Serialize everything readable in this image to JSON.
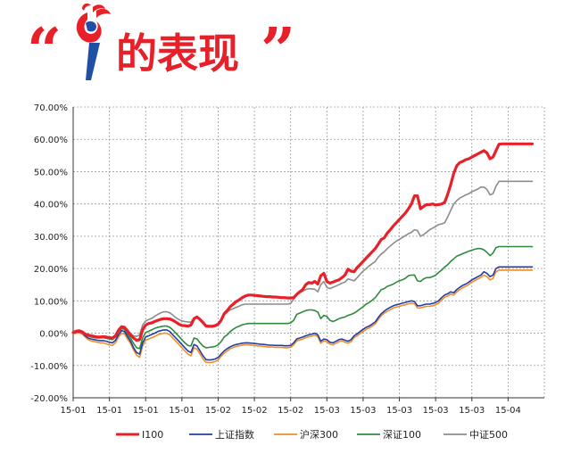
{
  "header": {
    "open_quote": "“",
    "title": "的表现",
    "close_quote": "”",
    "logo_icon": "torch-logo-icon"
  },
  "chart_data": {
    "type": "line",
    "title": "",
    "xlabel": "",
    "ylabel": "",
    "ylim": [
      -0.2,
      0.7
    ],
    "grid": true,
    "legend_position": "bottom",
    "yticks": [
      "70.00%",
      "60.00%",
      "50.00%",
      "40.00%",
      "30.00%",
      "20.00%",
      "10.00%",
      "0.00%",
      "-10.00%",
      "-20.00%"
    ],
    "xticks": [
      "15-01",
      "15-01",
      "15-01",
      "15-01",
      "15-02",
      "15-02",
      "15-02",
      "15-03",
      "15-03",
      "15-03",
      "15-03",
      "15-03",
      "15-04"
    ],
    "x": [
      0,
      1,
      2,
      3,
      4,
      5,
      6,
      7,
      8,
      9,
      10,
      11,
      12,
      13,
      14,
      15,
      16,
      17,
      18,
      19,
      20,
      21,
      22,
      23,
      24,
      25,
      26,
      27,
      28,
      29,
      30,
      31,
      32,
      33,
      34,
      35,
      36,
      37,
      38,
      39,
      40,
      41,
      42,
      43,
      44,
      45,
      46,
      47,
      48,
      49,
      50,
      51,
      52,
      53,
      54,
      55,
      56,
      57,
      58,
      59,
      60,
      61,
      62,
      63,
      64,
      65,
      66,
      67,
      68,
      69,
      70,
      71,
      72,
      73,
      74,
      75,
      76,
      77,
      78,
      79,
      80,
      81,
      82,
      83,
      84,
      85,
      86,
      87,
      88,
      89,
      90,
      91,
      92,
      93,
      94,
      95,
      96,
      97,
      98,
      99,
      100,
      101,
      102,
      103,
      104,
      105,
      106,
      107,
      108,
      109,
      110,
      111,
      112,
      113,
      114,
      115,
      116,
      117,
      118,
      119,
      120,
      121,
      122,
      123,
      124,
      125,
      126,
      127,
      128,
      129,
      130,
      131,
      132,
      133,
      134,
      135,
      136,
      137,
      138,
      139,
      140,
      141,
      142,
      143,
      144,
      145,
      146,
      147,
      148,
      149,
      150,
      151,
      152,
      153,
      154,
      155,
      156
    ],
    "series": [
      {
        "name": "I100",
        "color": "#e8202a",
        "width": 3.2,
        "values": [
          0.002,
          0.006,
          0.007,
          0.004,
          -0.003,
          -0.006,
          -0.008,
          -0.01,
          -0.012,
          -0.012,
          -0.011,
          -0.012,
          -0.014,
          -0.015,
          -0.008,
          0.009,
          0.02,
          0.018,
          0.007,
          -0.005,
          -0.015,
          -0.022,
          -0.02,
          0.01,
          0.025,
          0.03,
          0.032,
          0.036,
          0.04,
          0.043,
          0.045,
          0.045,
          0.044,
          0.04,
          0.034,
          0.028,
          0.024,
          0.023,
          0.022,
          0.025,
          0.045,
          0.05,
          0.042,
          0.033,
          0.022,
          0.021,
          0.021,
          0.023,
          0.028,
          0.04,
          0.06,
          0.07,
          0.082,
          0.09,
          0.098,
          0.103,
          0.11,
          0.115,
          0.118,
          0.118,
          0.117,
          0.116,
          0.115,
          0.114,
          0.113,
          0.113,
          0.112,
          0.112,
          0.111,
          0.11,
          0.11,
          0.109,
          0.109,
          0.11,
          0.12,
          0.128,
          0.135,
          0.15,
          0.157,
          0.155,
          0.16,
          0.152,
          0.178,
          0.185,
          0.16,
          0.155,
          0.158,
          0.162,
          0.165,
          0.172,
          0.18,
          0.198,
          0.192,
          0.19,
          0.203,
          0.212,
          0.222,
          0.232,
          0.242,
          0.252,
          0.262,
          0.275,
          0.29,
          0.295,
          0.31,
          0.32,
          0.332,
          0.342,
          0.352,
          0.362,
          0.372,
          0.385,
          0.4,
          0.425,
          0.425,
          0.385,
          0.392,
          0.398,
          0.398,
          0.4,
          0.397,
          0.398,
          0.4,
          0.405,
          0.43,
          0.46,
          0.495,
          0.518,
          0.528,
          0.532,
          0.537,
          0.54,
          0.545,
          0.55,
          0.555,
          0.56,
          0.565,
          0.558,
          0.54,
          0.545,
          0.565,
          0.585,
          0.586,
          0.586,
          0.586,
          0.586,
          0.586,
          0.586,
          0.586,
          0.586,
          0.586,
          0.586,
          0.586,
          0.586,
          0.586,
          0.586,
          0.586
        ]
      },
      {
        "name": "上证指数",
        "color": "#1f3fa6",
        "width": 1.6,
        "values": [
          0.0,
          0.003,
          0.004,
          0.001,
          -0.008,
          -0.015,
          -0.018,
          -0.02,
          -0.022,
          -0.023,
          -0.023,
          -0.025,
          -0.028,
          -0.03,
          -0.022,
          -0.005,
          0.008,
          0.005,
          -0.01,
          -0.025,
          -0.045,
          -0.06,
          -0.065,
          -0.03,
          -0.012,
          -0.008,
          -0.004,
          0.0,
          0.005,
          0.008,
          0.01,
          0.01,
          0.005,
          -0.005,
          -0.015,
          -0.025,
          -0.035,
          -0.045,
          -0.055,
          -0.06,
          -0.035,
          -0.04,
          -0.055,
          -0.07,
          -0.082,
          -0.083,
          -0.082,
          -0.08,
          -0.075,
          -0.065,
          -0.055,
          -0.048,
          -0.042,
          -0.038,
          -0.035,
          -0.033,
          -0.031,
          -0.03,
          -0.03,
          -0.031,
          -0.032,
          -0.033,
          -0.034,
          -0.035,
          -0.036,
          -0.037,
          -0.037,
          -0.038,
          -0.038,
          -0.038,
          -0.039,
          -0.039,
          -0.038,
          -0.03,
          -0.018,
          -0.015,
          -0.012,
          -0.008,
          -0.005,
          -0.003,
          0.0,
          -0.005,
          -0.025,
          -0.018,
          -0.02,
          -0.028,
          -0.03,
          -0.025,
          -0.02,
          -0.018,
          -0.022,
          -0.025,
          -0.02,
          -0.008,
          -0.002,
          0.005,
          0.012,
          0.018,
          0.022,
          0.028,
          0.035,
          0.048,
          0.06,
          0.068,
          0.075,
          0.08,
          0.085,
          0.088,
          0.09,
          0.093,
          0.095,
          0.098,
          0.1,
          0.098,
          0.085,
          0.085,
          0.088,
          0.09,
          0.09,
          0.092,
          0.095,
          0.1,
          0.11,
          0.118,
          0.122,
          0.128,
          0.125,
          0.135,
          0.142,
          0.148,
          0.152,
          0.158,
          0.165,
          0.17,
          0.175,
          0.18,
          0.19,
          0.185,
          0.175,
          0.18,
          0.2,
          0.205,
          0.205,
          0.205,
          0.205,
          0.205,
          0.205,
          0.205,
          0.205,
          0.205,
          0.205,
          0.205,
          0.205,
          0.205,
          0.205,
          0.205,
          0.205
        ]
      },
      {
        "name": "沪深300",
        "color": "#f28c28",
        "width": 1.6,
        "values": [
          -0.002,
          0.0,
          0.001,
          -0.003,
          -0.012,
          -0.02,
          -0.024,
          -0.026,
          -0.028,
          -0.03,
          -0.03,
          -0.033,
          -0.036,
          -0.038,
          -0.03,
          -0.012,
          0.0,
          -0.002,
          -0.018,
          -0.032,
          -0.052,
          -0.068,
          -0.075,
          -0.04,
          -0.022,
          -0.018,
          -0.014,
          -0.01,
          -0.005,
          -0.002,
          0.0,
          0.0,
          -0.005,
          -0.015,
          -0.025,
          -0.035,
          -0.045,
          -0.055,
          -0.065,
          -0.07,
          -0.045,
          -0.05,
          -0.065,
          -0.08,
          -0.09,
          -0.091,
          -0.09,
          -0.088,
          -0.082,
          -0.072,
          -0.062,
          -0.055,
          -0.048,
          -0.044,
          -0.041,
          -0.039,
          -0.037,
          -0.036,
          -0.036,
          -0.037,
          -0.038,
          -0.039,
          -0.04,
          -0.041,
          -0.042,
          -0.043,
          -0.043,
          -0.044,
          -0.044,
          -0.044,
          -0.045,
          -0.045,
          -0.044,
          -0.036,
          -0.024,
          -0.021,
          -0.018,
          -0.014,
          -0.011,
          -0.009,
          -0.006,
          -0.011,
          -0.031,
          -0.024,
          -0.026,
          -0.034,
          -0.036,
          -0.031,
          -0.026,
          -0.024,
          -0.028,
          -0.031,
          -0.026,
          -0.014,
          -0.008,
          -0.001,
          0.006,
          0.012,
          0.016,
          0.022,
          0.029,
          0.042,
          0.054,
          0.062,
          0.068,
          0.073,
          0.078,
          0.081,
          0.083,
          0.086,
          0.088,
          0.091,
          0.093,
          0.091,
          0.078,
          0.078,
          0.081,
          0.083,
          0.083,
          0.085,
          0.088,
          0.093,
          0.103,
          0.111,
          0.115,
          0.121,
          0.118,
          0.128,
          0.135,
          0.141,
          0.145,
          0.151,
          0.158,
          0.163,
          0.168,
          0.173,
          0.18,
          0.175,
          0.165,
          0.17,
          0.19,
          0.195,
          0.195,
          0.195,
          0.195,
          0.195,
          0.195,
          0.195,
          0.195,
          0.195,
          0.195,
          0.195,
          0.195,
          0.195,
          0.195,
          0.195,
          0.195
        ]
      },
      {
        "name": "深证100",
        "color": "#2e8b3e",
        "width": 1.6,
        "values": [
          0.003,
          0.006,
          0.008,
          0.004,
          -0.004,
          -0.009,
          -0.012,
          -0.014,
          -0.015,
          -0.015,
          -0.014,
          -0.016,
          -0.018,
          -0.02,
          -0.012,
          0.004,
          0.014,
          0.012,
          -0.002,
          -0.015,
          -0.032,
          -0.045,
          -0.048,
          -0.015,
          0.002,
          0.006,
          0.01,
          0.015,
          0.018,
          0.02,
          0.022,
          0.022,
          0.018,
          0.01,
          0.0,
          -0.01,
          -0.02,
          -0.03,
          -0.038,
          -0.04,
          -0.015,
          -0.018,
          -0.03,
          -0.04,
          -0.045,
          -0.044,
          -0.043,
          -0.041,
          -0.036,
          -0.026,
          -0.012,
          -0.005,
          0.005,
          0.012,
          0.018,
          0.022,
          0.026,
          0.028,
          0.03,
          0.03,
          0.03,
          0.03,
          0.03,
          0.03,
          0.03,
          0.03,
          0.03,
          0.03,
          0.03,
          0.03,
          0.03,
          0.03,
          0.032,
          0.04,
          0.058,
          0.062,
          0.066,
          0.07,
          0.072,
          0.072,
          0.07,
          0.065,
          0.045,
          0.055,
          0.052,
          0.04,
          0.036,
          0.04,
          0.045,
          0.048,
          0.05,
          0.055,
          0.058,
          0.062,
          0.068,
          0.075,
          0.082,
          0.09,
          0.095,
          0.102,
          0.11,
          0.122,
          0.135,
          0.138,
          0.145,
          0.148,
          0.152,
          0.158,
          0.162,
          0.165,
          0.17,
          0.178,
          0.18,
          0.18,
          0.162,
          0.16,
          0.168,
          0.172,
          0.172,
          0.175,
          0.18,
          0.188,
          0.195,
          0.205,
          0.212,
          0.222,
          0.23,
          0.238,
          0.242,
          0.246,
          0.25,
          0.254,
          0.257,
          0.26,
          0.262,
          0.262,
          0.258,
          0.25,
          0.24,
          0.248,
          0.265,
          0.268,
          0.268,
          0.268,
          0.268,
          0.268,
          0.268,
          0.268,
          0.268,
          0.268,
          0.268,
          0.268,
          0.268,
          0.268,
          0.268,
          0.268,
          0.268
        ]
      },
      {
        "name": "中证500",
        "color": "#8c8c8c",
        "width": 1.6,
        "values": [
          0.004,
          0.008,
          0.01,
          0.006,
          -0.002,
          -0.006,
          -0.008,
          -0.01,
          -0.011,
          -0.011,
          -0.01,
          -0.011,
          -0.012,
          -0.013,
          -0.006,
          0.01,
          0.022,
          0.02,
          0.008,
          -0.002,
          -0.008,
          -0.01,
          -0.005,
          0.025,
          0.038,
          0.042,
          0.046,
          0.052,
          0.058,
          0.063,
          0.066,
          0.066,
          0.063,
          0.056,
          0.048,
          0.042,
          0.038,
          0.036,
          0.035,
          0.034,
          0.048,
          0.052,
          0.045,
          0.036,
          0.025,
          0.023,
          0.023,
          0.026,
          0.03,
          0.04,
          0.056,
          0.065,
          0.072,
          0.076,
          0.08,
          0.084,
          0.088,
          0.09,
          0.09,
          0.09,
          0.09,
          0.09,
          0.09,
          0.09,
          0.09,
          0.09,
          0.09,
          0.09,
          0.09,
          0.09,
          0.09,
          0.09,
          0.092,
          0.105,
          0.118,
          0.125,
          0.13,
          0.135,
          0.138,
          0.137,
          0.136,
          0.128,
          0.15,
          0.16,
          0.142,
          0.138,
          0.142,
          0.146,
          0.15,
          0.155,
          0.158,
          0.168,
          0.165,
          0.162,
          0.172,
          0.182,
          0.192,
          0.2,
          0.208,
          0.215,
          0.222,
          0.235,
          0.245,
          0.252,
          0.262,
          0.27,
          0.278,
          0.285,
          0.29,
          0.296,
          0.302,
          0.308,
          0.312,
          0.32,
          0.318,
          0.3,
          0.305,
          0.312,
          0.32,
          0.325,
          0.33,
          0.336,
          0.338,
          0.342,
          0.36,
          0.38,
          0.4,
          0.41,
          0.418,
          0.423,
          0.428,
          0.432,
          0.438,
          0.442,
          0.446,
          0.452,
          0.452,
          0.445,
          0.428,
          0.432,
          0.455,
          0.47,
          0.47,
          0.47,
          0.47,
          0.47,
          0.47,
          0.47,
          0.47,
          0.47,
          0.47,
          0.47,
          0.47,
          0.47,
          0.47,
          0.47,
          0.47
        ]
      }
    ]
  }
}
